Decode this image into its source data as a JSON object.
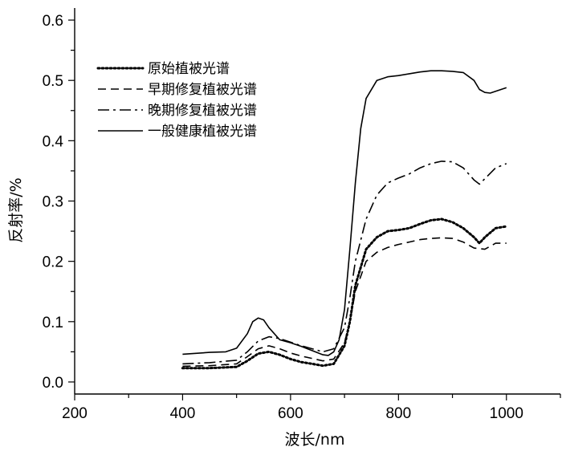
{
  "chart_data": {
    "type": "line",
    "title": "",
    "xlabel": "波长/nm",
    "ylabel": "反射率/%",
    "xlim": [
      200,
      1100
    ],
    "ylim": [
      -0.02,
      0.62
    ],
    "xticks": [
      "200",
      "400",
      "600",
      "800",
      "1000"
    ],
    "yticks": [
      "0.0",
      "0.1",
      "0.2",
      "0.3",
      "0.4",
      "0.5",
      "0.6"
    ],
    "grid": false,
    "legend_position": "top-left",
    "series": [
      {
        "name": "原始植被光谱",
        "style": "dotted",
        "x": [
          400,
          450,
          500,
          520,
          540,
          560,
          580,
          600,
          620,
          640,
          660,
          680,
          700,
          710,
          720,
          740,
          760,
          780,
          800,
          820,
          840,
          860,
          880,
          900,
          920,
          940,
          950,
          960,
          980,
          1000
        ],
        "y": [
          0.023,
          0.023,
          0.025,
          0.035,
          0.047,
          0.05,
          0.045,
          0.038,
          0.033,
          0.03,
          0.027,
          0.03,
          0.06,
          0.1,
          0.16,
          0.22,
          0.24,
          0.25,
          0.252,
          0.255,
          0.262,
          0.268,
          0.27,
          0.265,
          0.255,
          0.24,
          0.23,
          0.24,
          0.255,
          0.258
        ]
      },
      {
        "name": "早期修复植被光谱",
        "style": "dashed",
        "x": [
          400,
          450,
          500,
          520,
          540,
          560,
          580,
          600,
          620,
          640,
          660,
          680,
          700,
          710,
          720,
          740,
          760,
          780,
          800,
          820,
          840,
          860,
          880,
          900,
          920,
          940,
          960,
          980,
          1000
        ],
        "y": [
          0.026,
          0.027,
          0.03,
          0.042,
          0.055,
          0.06,
          0.055,
          0.048,
          0.043,
          0.039,
          0.035,
          0.038,
          0.065,
          0.1,
          0.15,
          0.2,
          0.215,
          0.223,
          0.228,
          0.232,
          0.236,
          0.238,
          0.239,
          0.238,
          0.232,
          0.222,
          0.22,
          0.23,
          0.23
        ]
      },
      {
        "name": "晚期修复植被光谱",
        "style": "dash-dot",
        "x": [
          400,
          450,
          500,
          520,
          540,
          560,
          580,
          600,
          620,
          640,
          660,
          680,
          700,
          710,
          720,
          740,
          760,
          780,
          800,
          820,
          840,
          860,
          880,
          900,
          920,
          940,
          950,
          960,
          980,
          1000
        ],
        "y": [
          0.03,
          0.032,
          0.036,
          0.05,
          0.068,
          0.075,
          0.072,
          0.066,
          0.06,
          0.055,
          0.05,
          0.055,
          0.09,
          0.14,
          0.2,
          0.27,
          0.31,
          0.33,
          0.338,
          0.345,
          0.355,
          0.362,
          0.366,
          0.365,
          0.355,
          0.335,
          0.328,
          0.337,
          0.355,
          0.362
        ]
      },
      {
        "name": "一般健康植被光谱",
        "style": "solid",
        "x": [
          400,
          450,
          480,
          500,
          520,
          530,
          540,
          550,
          560,
          580,
          600,
          620,
          640,
          660,
          670,
          680,
          690,
          700,
          710,
          720,
          730,
          740,
          760,
          780,
          800,
          820,
          840,
          860,
          880,
          900,
          920,
          940,
          950,
          960,
          970,
          980,
          1000
        ],
        "y": [
          0.046,
          0.049,
          0.05,
          0.056,
          0.08,
          0.1,
          0.106,
          0.103,
          0.09,
          0.07,
          0.065,
          0.059,
          0.052,
          0.045,
          0.044,
          0.05,
          0.07,
          0.12,
          0.22,
          0.33,
          0.42,
          0.47,
          0.5,
          0.506,
          0.508,
          0.511,
          0.514,
          0.516,
          0.516,
          0.515,
          0.513,
          0.5,
          0.485,
          0.48,
          0.479,
          0.482,
          0.488
        ]
      }
    ]
  }
}
